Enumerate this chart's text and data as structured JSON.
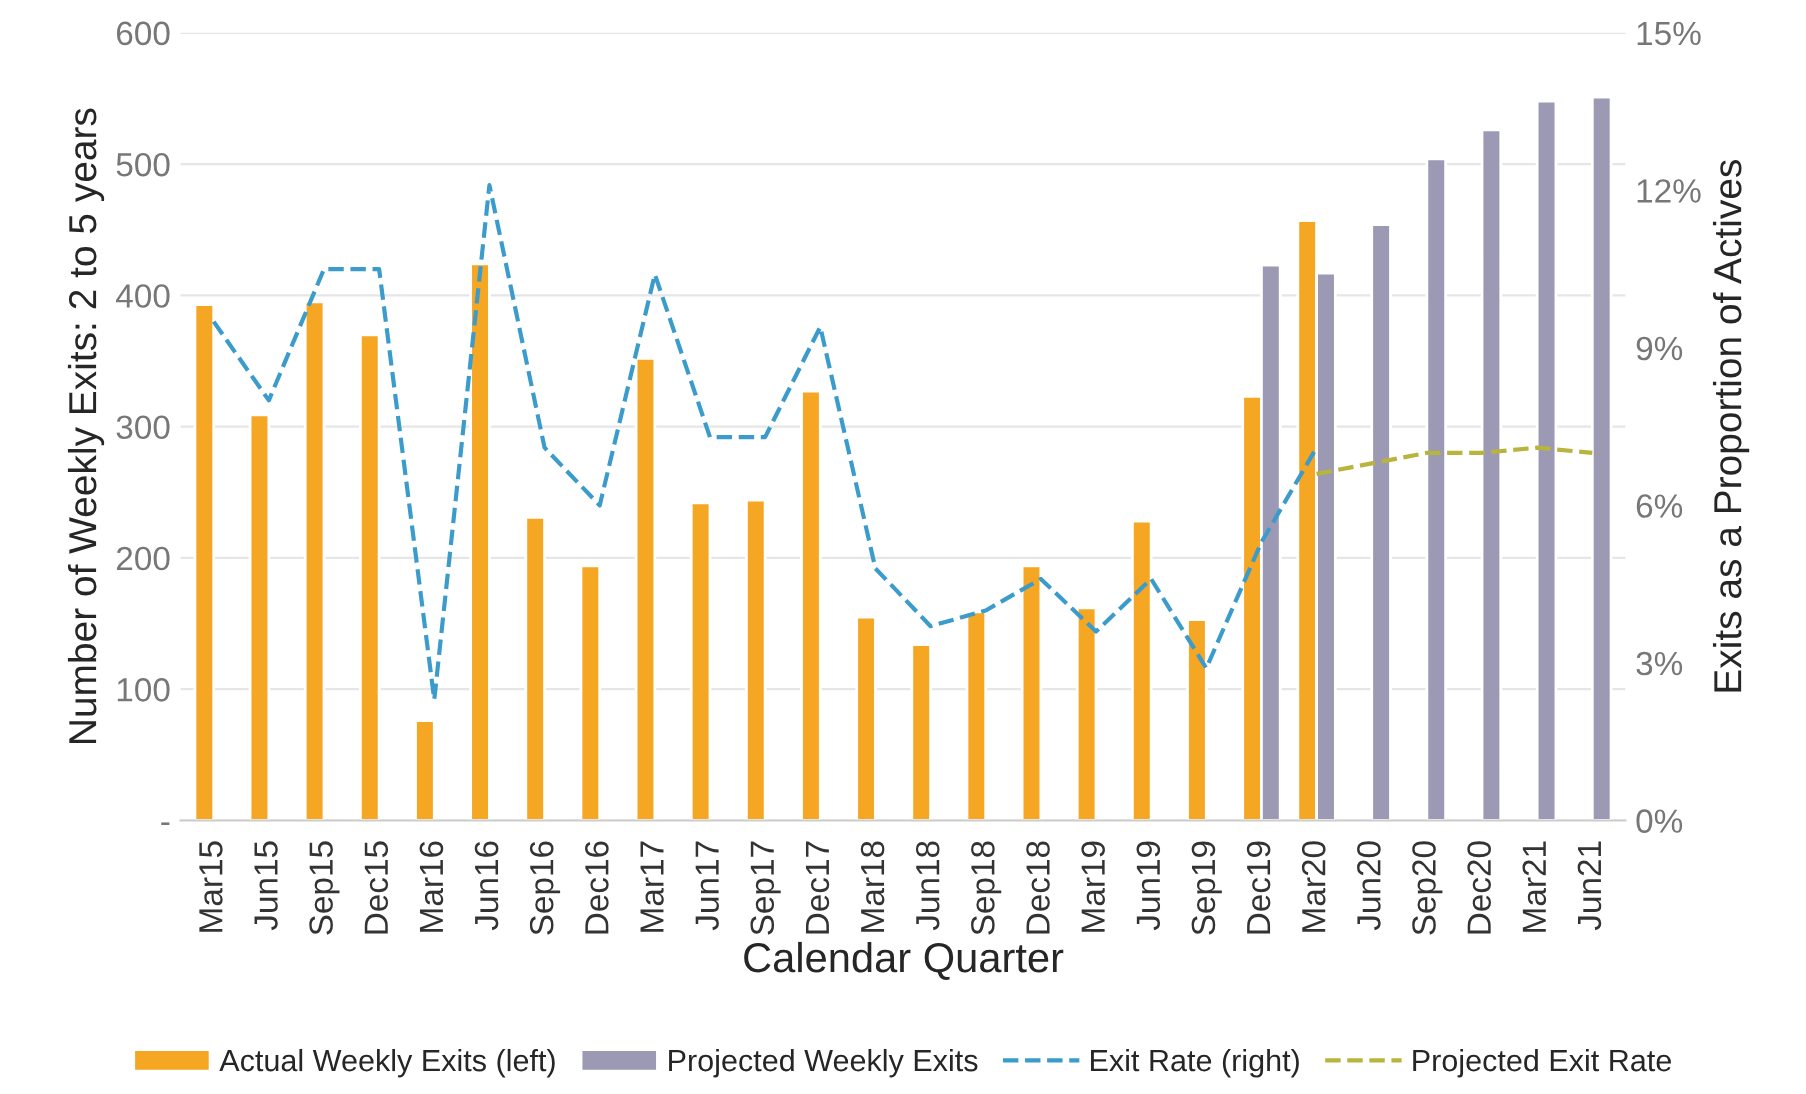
{
  "chart_data": {
    "type": "bar",
    "xlabel": "Calendar Quarter",
    "ylabel": "Number of Weekly Exits: 2 to 5 years",
    "y2label": "Exits as a Proportion of Actives",
    "categories": [
      "Mar15",
      "Jun15",
      "Sep15",
      "Dec15",
      "Mar16",
      "Jun16",
      "Sep16",
      "Dec16",
      "Mar17",
      "Jun17",
      "Sep17",
      "Dec17",
      "Mar18",
      "Jun18",
      "Sep18",
      "Dec18",
      "Mar19",
      "Jun19",
      "Sep19",
      "Dec19",
      "Mar20",
      "Jun20",
      "Sep20",
      "Dec20",
      "Mar21",
      "Jun21"
    ],
    "series": [
      {
        "name": "Actual Weekly Exits (left)",
        "color": "#f5a623",
        "values": [
          393,
          309,
          395,
          370,
          76,
          424,
          231,
          194,
          352,
          242,
          244,
          327,
          155,
          134,
          159,
          194,
          162,
          228,
          153,
          323,
          457,
          null,
          null,
          null,
          null,
          null
        ]
      },
      {
        "name": "Projected Weekly Exits",
        "color": "#9b99b3",
        "values": [
          null,
          null,
          null,
          null,
          null,
          null,
          null,
          null,
          null,
          null,
          null,
          null,
          null,
          null,
          null,
          null,
          null,
          null,
          null,
          423,
          417,
          454,
          504,
          526,
          548,
          551
        ]
      },
      {
        "name": "Exit Rate (right)",
        "type": "line",
        "axis": "y2",
        "line_style": "dashed",
        "color": "#3b9ccc",
        "values": [
          9.5,
          8.0,
          10.5,
          10.5,
          2.3,
          12.1,
          7.1,
          6.0,
          10.4,
          7.3,
          7.3,
          9.4,
          4.8,
          3.7,
          4.0,
          4.6,
          3.6,
          4.6,
          2.9,
          5.3,
          7.1,
          null,
          null,
          null,
          null,
          null
        ]
      },
      {
        "name": "Projected Exit Rate",
        "type": "line",
        "axis": "y2",
        "line_style": "dashed",
        "color": "#b8b43c",
        "values": [
          null,
          null,
          null,
          null,
          null,
          null,
          null,
          null,
          null,
          null,
          null,
          null,
          null,
          null,
          null,
          null,
          null,
          null,
          null,
          null,
          6.6,
          6.8,
          7.0,
          7.0,
          7.1,
          7.0
        ]
      }
    ],
    "ylim": [
      0,
      600
    ],
    "yticks": [
      {
        "value": 0,
        "label": "-"
      },
      100,
      200,
      300,
      400,
      500,
      600
    ],
    "y2lim": [
      0,
      15
    ],
    "y2ticks": [
      {
        "value": 0,
        "label": "0%"
      },
      {
        "value": 3,
        "label": "3%"
      },
      {
        "value": 6,
        "label": "6%"
      },
      {
        "value": 9,
        "label": "9%"
      },
      {
        "value": 12,
        "label": "12%"
      },
      {
        "value": 15,
        "label": "15%"
      }
    ],
    "grid": "y",
    "legend": "bottom"
  }
}
